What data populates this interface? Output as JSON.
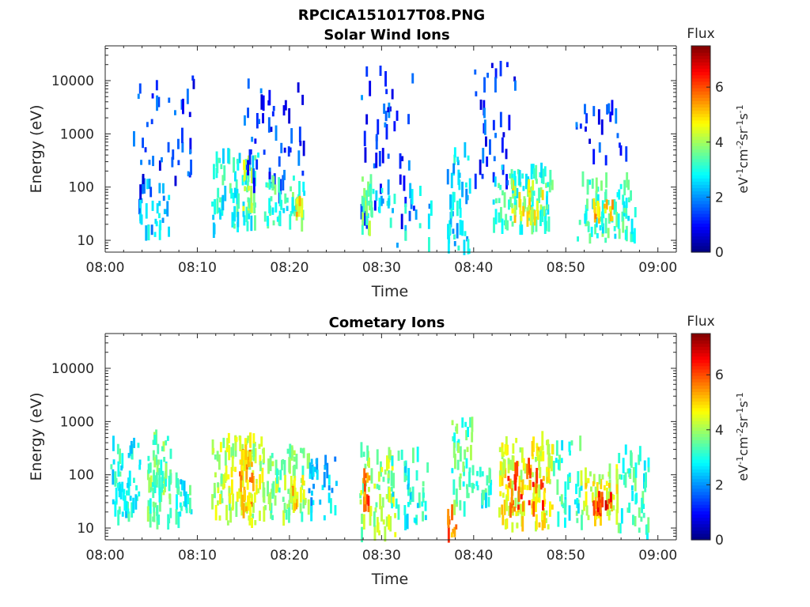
{
  "figure": {
    "title": "RPCICA151017T08.PNG"
  },
  "chart_data": [
    {
      "type": "heatmap",
      "title": "Solar Wind Ions",
      "xlabel": "Time",
      "ylabel": "Energy (eV)",
      "x_range_minutes": [
        0,
        62
      ],
      "x_ticks": [
        {
          "v": 0,
          "label": "08:00"
        },
        {
          "v": 10,
          "label": "08:10"
        },
        {
          "v": 20,
          "label": "08:20"
        },
        {
          "v": 30,
          "label": "08:30"
        },
        {
          "v": 40,
          "label": "08:40"
        },
        {
          "v": 50,
          "label": "08:50"
        },
        {
          "v": 60,
          "label": "09:00"
        }
      ],
      "y_scale": "log",
      "y_range_eV": [
        6,
        45000
      ],
      "y_ticks": [
        {
          "v": 10,
          "label": "10"
        },
        {
          "v": 100,
          "label": "100"
        },
        {
          "v": 1000,
          "label": "1000"
        },
        {
          "v": 10000,
          "label": "10000"
        }
      ],
      "colorbar": {
        "label": "Flux",
        "unit_base": "eV",
        "unit_parts": [
          "-1",
          "cm",
          "-2",
          "sr",
          "-1",
          "s",
          "-1"
        ],
        "range": [
          0,
          7.5
        ],
        "ticks": [
          {
            "v": 0,
            "label": "0"
          },
          {
            "v": 2,
            "label": "2"
          },
          {
            "v": 4,
            "label": "4"
          },
          {
            "v": 6,
            "label": "6"
          }
        ],
        "colormap": "jet"
      },
      "clusters": [
        {
          "t0": 3.5,
          "t1": 6.8,
          "e0": 12,
          "e1": 120,
          "val": 2.4,
          "n": 35
        },
        {
          "t0": 3.0,
          "t1": 9.5,
          "e0": 80,
          "e1": 12000,
          "val": 1.3,
          "n": 40
        },
        {
          "t0": 11.5,
          "t1": 16.5,
          "e0": 15,
          "e1": 400,
          "val": 3.0,
          "n": 70
        },
        {
          "t0": 14.8,
          "t1": 15.8,
          "e0": 30,
          "e1": 300,
          "val": 4.0,
          "n": 25
        },
        {
          "t0": 15.0,
          "t1": 21.5,
          "e0": 50,
          "e1": 13000,
          "val": 1.3,
          "n": 50
        },
        {
          "t0": 17.0,
          "t1": 21.5,
          "e0": 20,
          "e1": 150,
          "val": 3.2,
          "n": 45
        },
        {
          "t0": 20.5,
          "t1": 21.3,
          "e0": 25,
          "e1": 80,
          "val": 4.8,
          "n": 12
        },
        {
          "t0": 27.5,
          "t1": 33.5,
          "e0": 20,
          "e1": 22000,
          "val": 1.4,
          "n": 45
        },
        {
          "t0": 27.8,
          "t1": 29.0,
          "e0": 15,
          "e1": 150,
          "val": 3.6,
          "n": 30
        },
        {
          "t0": 29.0,
          "t1": 36.0,
          "e0": 8,
          "e1": 100,
          "val": 2.6,
          "n": 25
        },
        {
          "t0": 37.0,
          "t1": 39.5,
          "e0": 6,
          "e1": 500,
          "val": 2.6,
          "n": 45
        },
        {
          "t0": 40.0,
          "t1": 44.5,
          "e0": 100,
          "e1": 22000,
          "val": 1.3,
          "n": 35
        },
        {
          "t0": 42.0,
          "t1": 48.5,
          "e0": 15,
          "e1": 250,
          "val": 3.2,
          "n": 95
        },
        {
          "t0": 44.0,
          "t1": 47.5,
          "e0": 25,
          "e1": 120,
          "val": 4.5,
          "n": 30
        },
        {
          "t0": 50.5,
          "t1": 56.5,
          "e0": 300,
          "e1": 5000,
          "val": 1.3,
          "n": 22
        },
        {
          "t0": 51.0,
          "t1": 57.5,
          "e0": 10,
          "e1": 150,
          "val": 3.2,
          "n": 75
        },
        {
          "t0": 52.5,
          "t1": 55.0,
          "e0": 25,
          "e1": 50,
          "val": 5.0,
          "n": 15
        }
      ]
    },
    {
      "type": "heatmap",
      "title": "Cometary Ions",
      "xlabel": "Time",
      "ylabel": "Energy (eV)",
      "x_range_minutes": [
        0,
        62
      ],
      "x_ticks": [
        {
          "v": 0,
          "label": "08:00"
        },
        {
          "v": 10,
          "label": "08:10"
        },
        {
          "v": 20,
          "label": "08:20"
        },
        {
          "v": 30,
          "label": "08:30"
        },
        {
          "v": 40,
          "label": "08:40"
        },
        {
          "v": 50,
          "label": "08:50"
        },
        {
          "v": 60,
          "label": "09:00"
        }
      ],
      "y_scale": "log",
      "y_range_eV": [
        6,
        45000
      ],
      "y_ticks": [
        {
          "v": 10,
          "label": "10"
        },
        {
          "v": 100,
          "label": "100"
        },
        {
          "v": 1000,
          "label": "1000"
        },
        {
          "v": 10000,
          "label": "10000"
        }
      ],
      "colorbar": {
        "label": "Flux",
        "unit_base": "eV",
        "unit_parts": [
          "-1",
          "cm",
          "-2",
          "sr",
          "-1",
          "s",
          "-1"
        ],
        "range": [
          0,
          7.5
        ],
        "ticks": [
          {
            "v": 0,
            "label": "0"
          },
          {
            "v": 2,
            "label": "2"
          },
          {
            "v": 4,
            "label": "4"
          },
          {
            "v": 6,
            "label": "6"
          }
        ],
        "colormap": "jet"
      },
      "clusters": [
        {
          "t0": 0.5,
          "t1": 3.8,
          "e0": 15,
          "e1": 400,
          "val": 3.0,
          "n": 60
        },
        {
          "t0": 4.5,
          "t1": 7.0,
          "e0": 12,
          "e1": 600,
          "val": 3.6,
          "n": 70
        },
        {
          "t0": 7.5,
          "t1": 9.5,
          "e0": 12,
          "e1": 80,
          "val": 3.0,
          "n": 25
        },
        {
          "t0": 11.5,
          "t1": 17.0,
          "e0": 12,
          "e1": 500,
          "val": 4.2,
          "n": 110
        },
        {
          "t0": 14.5,
          "t1": 16.0,
          "e0": 20,
          "e1": 300,
          "val": 5.3,
          "n": 30
        },
        {
          "t0": 17.0,
          "t1": 22.0,
          "e0": 15,
          "e1": 300,
          "val": 3.8,
          "n": 80
        },
        {
          "t0": 20.0,
          "t1": 21.5,
          "e0": 25,
          "e1": 100,
          "val": 5.0,
          "n": 15
        },
        {
          "t0": 22.0,
          "t1": 25.0,
          "e0": 15,
          "e1": 200,
          "val": 2.4,
          "n": 30
        },
        {
          "t0": 27.5,
          "t1": 31.5,
          "e0": 7,
          "e1": 300,
          "val": 4.0,
          "n": 60
        },
        {
          "t0": 27.8,
          "t1": 28.8,
          "e0": 25,
          "e1": 100,
          "val": 5.8,
          "n": 14
        },
        {
          "t0": 31.0,
          "t1": 35.0,
          "e0": 12,
          "e1": 300,
          "val": 3.0,
          "n": 40
        },
        {
          "t0": 37.0,
          "t1": 38.0,
          "e0": 7,
          "e1": 20,
          "val": 5.6,
          "n": 12
        },
        {
          "t0": 37.5,
          "t1": 40.0,
          "e0": 20,
          "e1": 1000,
          "val": 3.4,
          "n": 45
        },
        {
          "t0": 40.0,
          "t1": 42.0,
          "e0": 25,
          "e1": 120,
          "val": 3.0,
          "n": 18
        },
        {
          "t0": 42.5,
          "t1": 48.5,
          "e0": 10,
          "e1": 500,
          "val": 4.5,
          "n": 130
        },
        {
          "t0": 43.5,
          "t1": 47.5,
          "e0": 20,
          "e1": 150,
          "val": 5.9,
          "n": 35
        },
        {
          "t0": 48.5,
          "t1": 52.0,
          "e0": 12,
          "e1": 500,
          "val": 3.2,
          "n": 40
        },
        {
          "t0": 51.5,
          "t1": 55.5,
          "e0": 15,
          "e1": 120,
          "val": 4.5,
          "n": 55
        },
        {
          "t0": 52.5,
          "t1": 55.0,
          "e0": 20,
          "e1": 40,
          "val": 6.3,
          "n": 18
        },
        {
          "t0": 55.5,
          "t1": 59.0,
          "e0": 8,
          "e1": 300,
          "val": 3.2,
          "n": 45
        }
      ]
    }
  ]
}
